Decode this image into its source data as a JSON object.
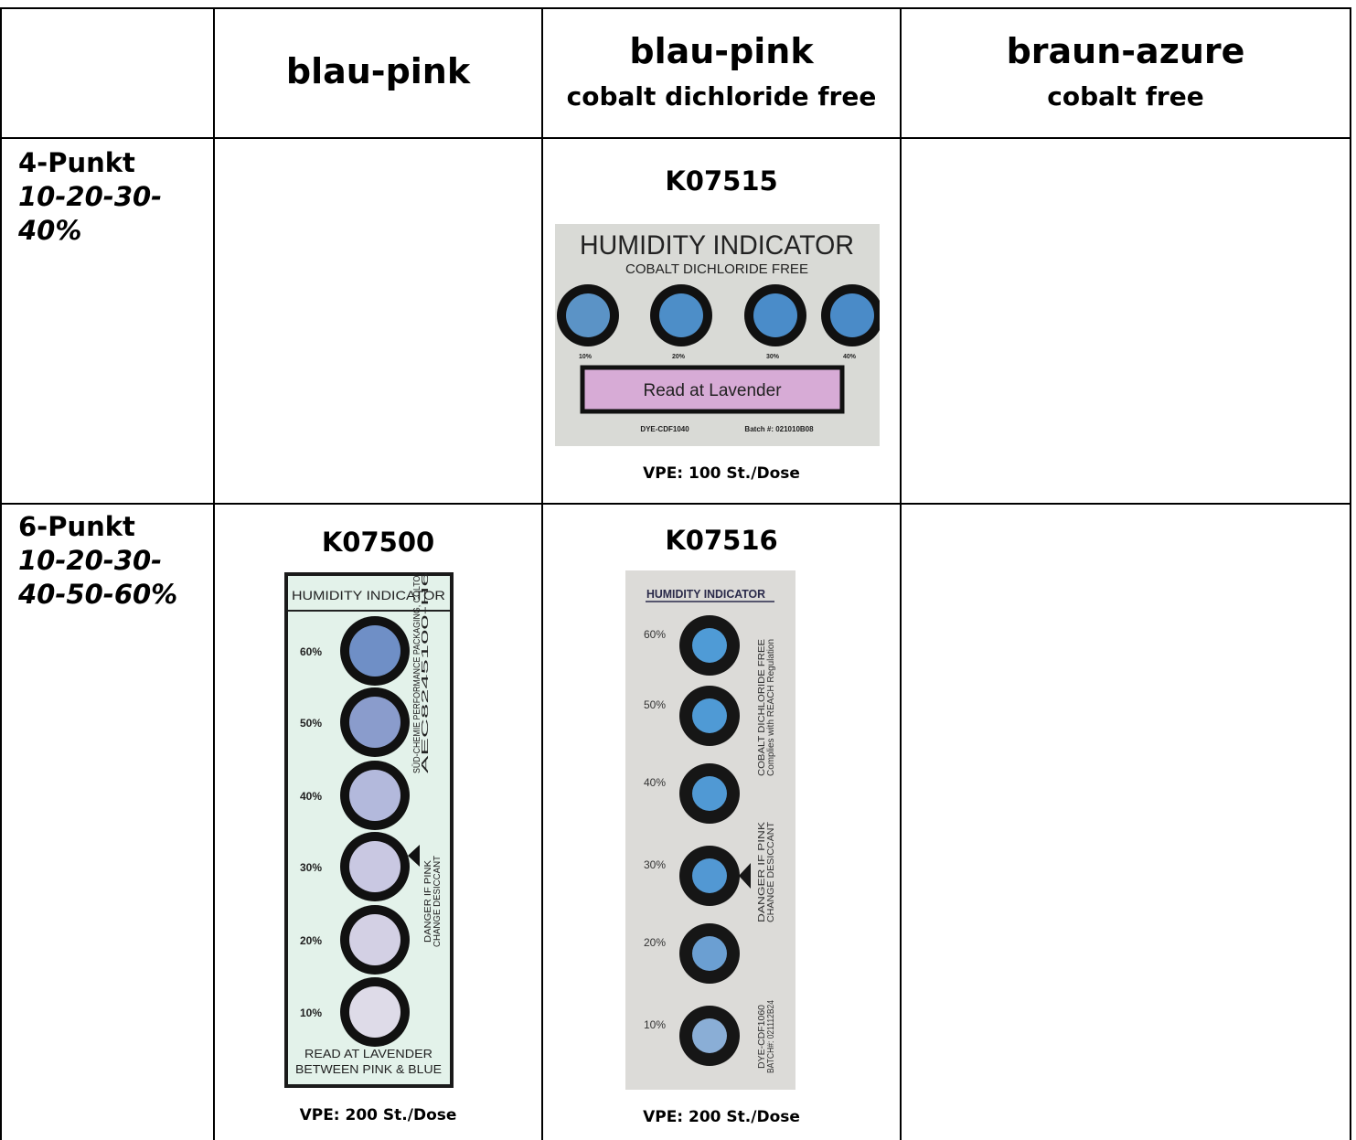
{
  "table": {
    "columns": [
      {
        "title": "blau-pink"
      },
      {
        "title": "blau-pink",
        "subtitle": "cobalt dichloride free"
      },
      {
        "title": "braun-azure",
        "subtitle": "cobalt free"
      }
    ],
    "rows": [
      {
        "label": "4-Punkt",
        "range": "10-20-30-40%",
        "cells": [
          null,
          {
            "code": "K07515",
            "packaging": "VPE: 100 St./Dose",
            "indicator": {
              "title": "HUMIDITY INDICATOR",
              "subtitle": "COBALT DICHLORIDE FREE",
              "spots": [
                "10%",
                "20%",
                "30%",
                "40%"
              ],
              "spot_colors": [
                "#5b93c6",
                "#4d8ec8",
                "#4a8cc9",
                "#4a8bc8"
              ],
              "note": "Read at Lavender",
              "footer": [
                "DYE-CDF1040",
                "Batch #: 021010B08"
              ]
            }
          },
          null
        ]
      },
      {
        "label": "6-Punkt",
        "range": "10-20-30-40-50-60%",
        "cells": [
          {
            "code": "K07500",
            "packaging": "VPE: 200 St./Dose",
            "indicator": {
              "title": "HUMIDITY INDICATOR",
              "spots": [
                "60%",
                "50%",
                "40%",
                "30%",
                "20%",
                "10%"
              ],
              "spot_colors": [
                "#6f8fc6",
                "#8a9ccc",
                "#b3b9dc",
                "#c9c8e2",
                "#d3d0e4",
                "#dedbe8"
              ],
              "side": [
                "SÜD-CHEMIE PERFORMANCE PACKAGING, COLTON, CA",
                "AEC8245100-H6E",
                "DANGER IF PINK",
                "CHANGE DESICCANT"
              ],
              "note": [
                "READ AT LAVENDER",
                "BETWEEN PINK & BLUE"
              ]
            }
          },
          {
            "code": "K07516",
            "packaging": "VPE: 200 St./Dose",
            "indicator": {
              "title": "HUMIDITY INDICATOR",
              "spots": [
                "60%",
                "50%",
                "40%",
                "30%",
                "20%",
                "10%"
              ],
              "spot_colors": [
                "#4f9bd6",
                "#4f9ad5",
                "#5099d4",
                "#5298d3",
                "#6b9fd2",
                "#8aaed6"
              ],
              "side": [
                "COBALT DICHLORIDE FREE",
                "Complies with REACH Regulation",
                "DANGER IF PINK",
                "CHANGE DESICCANT",
                "DYE-CDF1060",
                "BATCH#: 021112B24"
              ]
            }
          },
          null
        ]
      }
    ]
  }
}
